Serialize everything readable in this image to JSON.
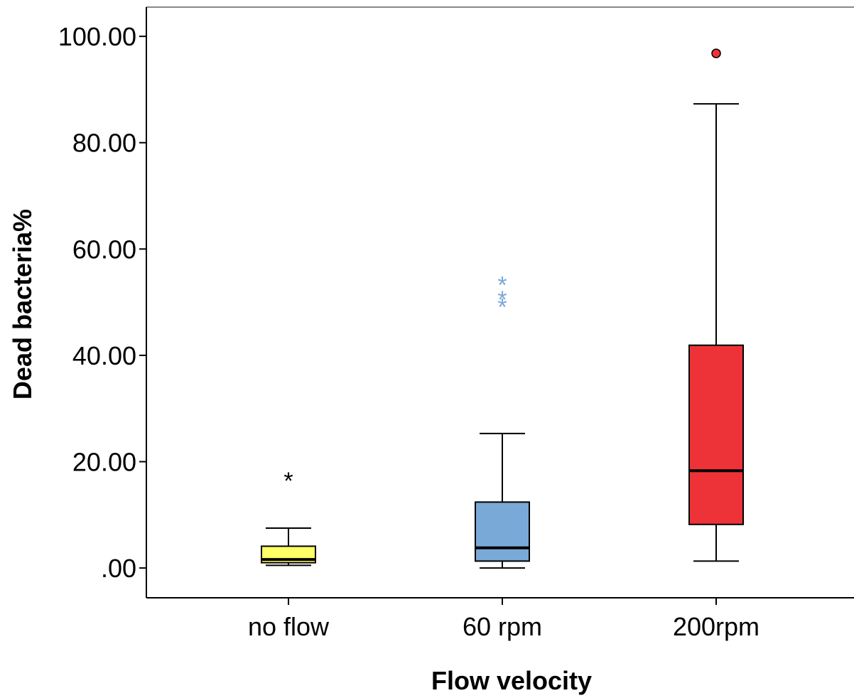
{
  "chart_data": {
    "type": "boxplot",
    "xlabel": "Flow velocity",
    "ylabel": "Dead bacteria%",
    "ylim": [
      -5.6,
      105.5
    ],
    "yticks": [
      0,
      20,
      40,
      60,
      80,
      100
    ],
    "ytick_labels": [
      ".00",
      "20.00",
      "40.00",
      "60.00",
      "80.00",
      "100.00"
    ],
    "grid": false,
    "categories": [
      "no flow",
      "60 rpm",
      "200rpm"
    ],
    "boxes": [
      {
        "category": "no flow",
        "color": "#ffff66",
        "whisker_low": 0.5,
        "q1": 1.0,
        "median": 1.6,
        "q3": 4.1,
        "whisker_high": 7.5,
        "outliers": [],
        "extremes": [
          17.0
        ],
        "extreme_color": "#000000"
      },
      {
        "category": "60 rpm",
        "color": "#79a9d6",
        "whisker_low": 0.0,
        "q1": 1.3,
        "median": 3.8,
        "q3": 12.4,
        "whisker_high": 25.3,
        "outliers": [],
        "extremes": [
          53.8,
          51.1,
          49.7
        ],
        "extreme_color": "#79a9d6"
      },
      {
        "category": "200rpm",
        "color": "#ee3338",
        "whisker_low": 1.3,
        "q1": 8.2,
        "median": 18.3,
        "q3": 41.9,
        "whisker_high": 87.3,
        "outliers": [
          96.8
        ],
        "extremes": [],
        "outlier_color": "#ee3338"
      }
    ]
  }
}
